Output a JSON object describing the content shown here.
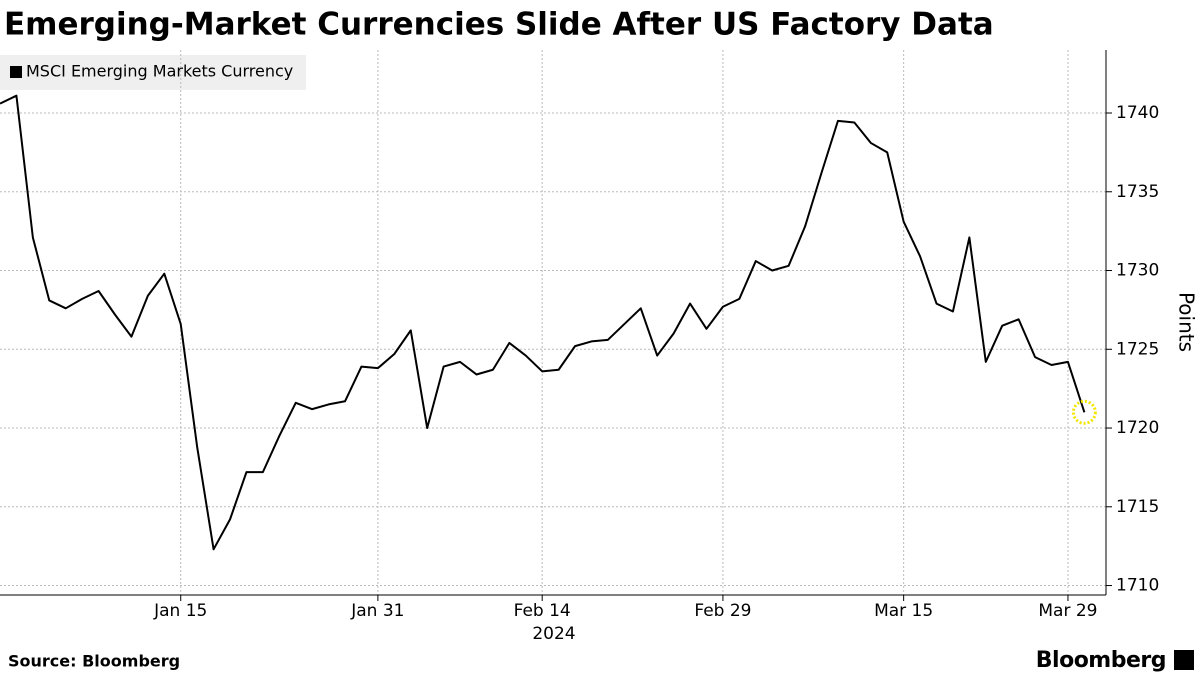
{
  "chart_data": {
    "type": "line",
    "title": "Emerging-Market Currencies Slide After US Factory Data",
    "source": "Source: Bloomberg",
    "brand": "Bloomberg",
    "y_axis_label": "Points",
    "year_label": "2024",
    "x": [
      "2023-12-29",
      "2024-01-01",
      "2024-01-02",
      "2024-01-03",
      "2024-01-04",
      "2024-01-05",
      "2024-01-08",
      "2024-01-09",
      "2024-01-10",
      "2024-01-11",
      "2024-01-12",
      "2024-01-15",
      "2024-01-16",
      "2024-01-17",
      "2024-01-18",
      "2024-01-19",
      "2024-01-22",
      "2024-01-23",
      "2024-01-24",
      "2024-01-25",
      "2024-01-26",
      "2024-01-29",
      "2024-01-30",
      "2024-01-31",
      "2024-02-01",
      "2024-02-02",
      "2024-02-05",
      "2024-02-06",
      "2024-02-07",
      "2024-02-08",
      "2024-02-09",
      "2024-02-12",
      "2024-02-13",
      "2024-02-14",
      "2024-02-15",
      "2024-02-16",
      "2024-02-19",
      "2024-02-20",
      "2024-02-21",
      "2024-02-22",
      "2024-02-23",
      "2024-02-26",
      "2024-02-27",
      "2024-02-28",
      "2024-02-29",
      "2024-03-01",
      "2024-03-04",
      "2024-03-05",
      "2024-03-06",
      "2024-03-07",
      "2024-03-08",
      "2024-03-11",
      "2024-03-12",
      "2024-03-13",
      "2024-03-14",
      "2024-03-15",
      "2024-03-18",
      "2024-03-19",
      "2024-03-20",
      "2024-03-21",
      "2024-03-22",
      "2024-03-25",
      "2024-03-26",
      "2024-03-27",
      "2024-03-28",
      "2024-03-29",
      "2024-04-01"
    ],
    "series": [
      {
        "name": "MSCI Emerging Markets Currency",
        "color": "#000000",
        "values": [
          1740.6,
          1741.1,
          1732.1,
          1728.1,
          1727.6,
          1728.2,
          1728.7,
          1727.2,
          1725.8,
          1728.4,
          1729.8,
          1726.6,
          1718.8,
          1712.3,
          1714.2,
          1717.2,
          1717.2,
          1719.5,
          1721.6,
          1721.2,
          1721.5,
          1721.7,
          1723.9,
          1723.8,
          1724.7,
          1726.2,
          1720.0,
          1723.9,
          1724.2,
          1723.4,
          1723.7,
          1725.4,
          1724.6,
          1723.6,
          1723.7,
          1725.2,
          1725.5,
          1725.6,
          1726.6,
          1727.6,
          1724.6,
          1726.0,
          1727.9,
          1726.3,
          1727.7,
          1728.2,
          1730.6,
          1730.0,
          1730.3,
          1732.8,
          1736.2,
          1739.5,
          1739.4,
          1738.1,
          1737.5,
          1733.1,
          1730.9,
          1727.9,
          1727.4,
          1732.1,
          1724.2,
          1726.5,
          1726.9,
          1724.5,
          1724.0,
          1724.2,
          1721.0
        ]
      }
    ],
    "highlight_color": "#f2e600",
    "xticks": [
      {
        "value": "2024-01-15",
        "label": "Jan 15"
      },
      {
        "value": "2024-01-31",
        "label": "Jan 31"
      },
      {
        "value": "2024-02-14",
        "label": "Feb 14"
      },
      {
        "value": "2024-02-29",
        "label": "Feb 29"
      },
      {
        "value": "2024-03-15",
        "label": "Mar 15"
      },
      {
        "value": "2024-03-29",
        "label": "Mar 29"
      }
    ],
    "ylim": [
      1709.4,
      1744
    ],
    "yticks": [
      1710,
      1715,
      1720,
      1725,
      1730,
      1735,
      1740
    ],
    "grid": true
  }
}
